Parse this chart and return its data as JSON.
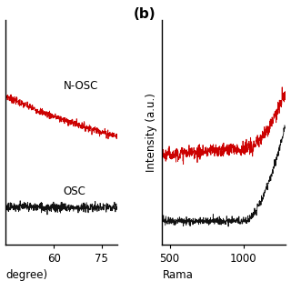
{
  "panel_a": {
    "xlabel": "degree)",
    "xmin": 45,
    "xmax": 80,
    "xticks": [
      60,
      75
    ],
    "nosc_label": "N-OSC",
    "osc_label": "OSC",
    "nosc_color": "#cc0000",
    "osc_color": "#111111",
    "nosc_baseline": 0.55,
    "osc_baseline": 0.15
  },
  "panel_b": {
    "xlabel": "Rama",
    "ylabel": "Intensity (a.u.)",
    "xmin": 450,
    "xmax": 1280,
    "xticks": [
      500,
      1000
    ],
    "nosc_color": "#cc0000",
    "osc_color": "#111111",
    "nosc_baseline": 0.38,
    "osc_baseline": 0.1,
    "panel_label": "(b)"
  },
  "background_color": "#ffffff",
  "line_width": 0.6,
  "noise_amplitude": 0.008,
  "font_size": 8.5
}
